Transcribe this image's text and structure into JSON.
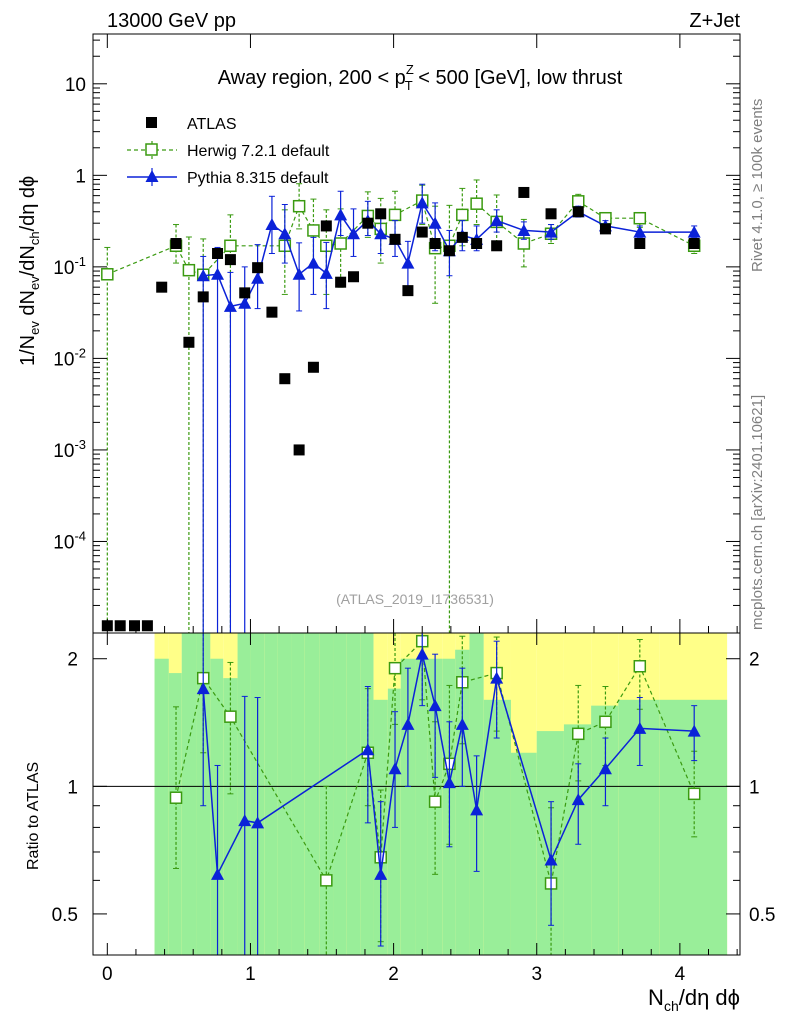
{
  "header": {
    "left": "13000 GeV pp",
    "right": "Z+Jet"
  },
  "side_texts": {
    "rivet": "Rivet 4.1.0, ≥ 100k events",
    "mcplots": "mcplots.cern.ch [arXiv:2401.10621]"
  },
  "watermark": "(ATLAS_2019_I1736531)",
  "ratio_ylabel": "Ratio to ATLAS",
  "colors": {
    "atlas": "#000000",
    "herwig": "#3a9a10",
    "pythia": "#0b22d8",
    "band_inner": "#99ee99",
    "band_outer": "#ffff88"
  },
  "chart_data": [
    {
      "type": "scatter",
      "title": "Away region, 200 < pTZ < 500 [GeV], low thrust",
      "title_parts": {
        "pre": "Away region, 200 < p",
        "sup": "Z",
        "sub": "T",
        "post": " < 500 [GeV], low thrust"
      },
      "xlabel": "Nch/dη dϕ",
      "xlabel_parts": {
        "a": "N",
        "a_sub": "ch",
        "b": "/dη dϕ"
      },
      "ylabel": "1/Nev dNev/dNch/dη dϕ",
      "ylabel_parts": {
        "a": "1/N",
        "a_sub": "ev",
        "b": " dN",
        "b_sub": "ev",
        "c": "/dN",
        "c_sub": "ch",
        "d": "/dη dϕ"
      },
      "yscale": "log",
      "xlim": [
        -0.1,
        4.42
      ],
      "ylim": [
        1e-05,
        35
      ],
      "xticks": [
        0,
        1,
        2,
        3,
        4
      ],
      "ytick_labels": [
        {
          "v": 10,
          "m": "10",
          "e": ""
        },
        {
          "v": 1,
          "m": "1",
          "e": ""
        },
        {
          "v": 0.1,
          "m": "10",
          "e": "-1"
        },
        {
          "v": 0.01,
          "m": "10",
          "e": "-2"
        },
        {
          "v": 0.001,
          "m": "10",
          "e": "-3"
        },
        {
          "v": 0.0001,
          "m": "10",
          "e": "-4"
        }
      ],
      "legend": [
        "ATLAS",
        "Herwig 7.2.1 default",
        "Pythia 8.315 default"
      ],
      "legend_position": "top-left",
      "series": [
        {
          "name": "ATLAS",
          "marker": "filled-square",
          "x": [
            0,
            0.09,
            0.19,
            0.28,
            0.38,
            0.48,
            0.57,
            0.67,
            0.77,
            0.86,
            0.96,
            1.05,
            1.15,
            1.24,
            1.34,
            1.44,
            1.53,
            1.63,
            1.72,
            1.82,
            1.91,
            2.01,
            2.1,
            2.2,
            2.29,
            2.39,
            2.48,
            2.58,
            2.72,
            2.91,
            3.1,
            3.29,
            3.48,
            3.72,
            4.1
          ],
          "y": [
            1.2e-05,
            1.2e-05,
            1.2e-05,
            1.2e-05,
            0.06,
            0.18,
            0.015,
            0.047,
            0.14,
            0.12,
            0.052,
            0.098,
            0.032,
            0.006,
            0.001,
            0.008,
            0.28,
            0.068,
            0.078,
            0.3,
            0.38,
            0.2,
            0.055,
            0.24,
            0.18,
            0.15,
            0.21,
            0.18,
            0.17,
            0.65,
            0.38,
            0.4,
            0.26,
            0.18,
            0.18
          ]
        },
        {
          "name": "Herwig 7.2.1 default",
          "marker": "open-square",
          "line": "dashed",
          "x": [
            0,
            0.48,
            0.57,
            0.67,
            0.86,
            1.24,
            1.34,
            1.44,
            1.53,
            1.63,
            1.82,
            1.91,
            2.01,
            2.2,
            2.29,
            2.39,
            2.48,
            2.58,
            2.72,
            2.91,
            3.1,
            3.29,
            3.48,
            3.72,
            4.1
          ],
          "y": [
            0.083,
            0.17,
            0.092,
            0.082,
            0.17,
            0.17,
            0.46,
            0.25,
            0.17,
            0.18,
            0.36,
            0.26,
            0.37,
            0.53,
            0.16,
            0.17,
            0.37,
            0.49,
            0.31,
            0.18,
            0.23,
            0.52,
            0.34,
            0.34,
            0.17
          ],
          "err_lo": [
            0.083,
            0.06,
            0.092,
            0.082,
            0.17,
            0.12,
            0.2,
            0.15,
            0.12,
            0.12,
            0.15,
            0.15,
            0.18,
            0.24,
            0.12,
            0.17,
            0.2,
            0.2,
            0.15,
            0.08,
            0.05,
            0.12,
            0.07,
            0.07,
            0.03
          ],
          "err_hi": [
            0.08,
            0.12,
            0.12,
            0.12,
            0.2,
            0.25,
            0.35,
            0.3,
            0.25,
            0.25,
            0.3,
            0.3,
            0.3,
            0.25,
            0.3,
            0.3,
            0.35,
            0.4,
            0.3,
            0.15,
            0.06,
            0.1,
            0.05,
            0.05,
            0.03
          ]
        },
        {
          "name": "Pythia 8.315 default",
          "marker": "filled-triangle",
          "line": "solid",
          "x": [
            0.67,
            0.77,
            0.86,
            0.96,
            1.05,
            1.15,
            1.24,
            1.34,
            1.44,
            1.53,
            1.63,
            1.72,
            1.82,
            1.91,
            2.01,
            2.1,
            2.2,
            2.29,
            2.39,
            2.48,
            2.58,
            2.72,
            2.91,
            3.1,
            3.29,
            3.48,
            3.72,
            4.1
          ],
          "y": [
            0.08,
            0.083,
            0.037,
            0.04,
            0.075,
            0.29,
            0.23,
            0.083,
            0.11,
            0.085,
            0.37,
            0.23,
            0.32,
            0.23,
            0.2,
            0.11,
            0.5,
            0.3,
            0.15,
            0.22,
            0.2,
            0.32,
            0.25,
            0.24,
            0.4,
            0.28,
            0.24,
            0.24
          ],
          "err_lo": [
            0.08,
            0.083,
            0.037,
            0.04,
            0.04,
            0.15,
            0.12,
            0.05,
            0.06,
            0.05,
            0.15,
            0.1,
            0.1,
            0.09,
            0.07,
            0.05,
            0.2,
            0.15,
            0.07,
            0.07,
            0.05,
            0.08,
            0.05,
            0.04,
            0.05,
            0.03,
            0.03,
            0.03
          ],
          "err_hi": [
            0.05,
            0.08,
            0.05,
            0.06,
            0.1,
            0.3,
            0.25,
            0.1,
            0.1,
            0.1,
            0.3,
            0.2,
            0.2,
            0.15,
            0.12,
            0.08,
            0.3,
            0.2,
            0.1,
            0.1,
            0.08,
            0.1,
            0.06,
            0.05,
            0.06,
            0.04,
            0.04,
            0.04
          ]
        }
      ]
    },
    {
      "type": "scatter",
      "title": "",
      "xlabel": "Nch/dη dϕ",
      "ylabel": "Ratio to ATLAS",
      "yscale": "log",
      "xlim": [
        -0.1,
        4.42
      ],
      "ylim": [
        0.4,
        2.3
      ],
      "yticks": [
        0.5,
        1,
        2
      ],
      "ytick_labels": [
        "0.5",
        "1",
        "2"
      ],
      "reference_line": 1,
      "bands": {
        "edges": [
          0.33,
          0.43,
          0.52,
          0.62,
          0.72,
          0.81,
          0.91,
          1.0,
          1.1,
          1.19,
          1.29,
          1.38,
          1.48,
          1.58,
          1.67,
          1.77,
          1.86,
          1.96,
          2.05,
          2.15,
          2.24,
          2.34,
          2.43,
          2.53,
          2.63,
          2.82,
          3.0,
          3.19,
          3.38,
          3.57,
          3.86,
          4.33
        ],
        "inner_lo": [
          0.4,
          0.4,
          0.4,
          0.4,
          0.4,
          0.4,
          0.4,
          0.4,
          0.4,
          0.4,
          0.4,
          0.4,
          0.4,
          0.4,
          0.4,
          0.4,
          0.4,
          0.4,
          0.4,
          0.4,
          0.4,
          0.4,
          0.4,
          0.4,
          0.4,
          0.4,
          0.4,
          0.4,
          0.4,
          0.4,
          0.4
        ],
        "inner_hi": [
          2.0,
          1.85,
          2.3,
          2.3,
          2.0,
          1.8,
          2.3,
          2.3,
          2.3,
          2.3,
          2.3,
          2.3,
          2.3,
          2.3,
          2.3,
          2.3,
          1.6,
          1.7,
          2.0,
          2.0,
          2.0,
          2.0,
          2.1,
          2.3,
          1.6,
          1.2,
          1.35,
          1.4,
          1.55,
          1.6,
          1.6
        ],
        "outer_lo": [
          0.4,
          0.4,
          0.4,
          0.4,
          0.4,
          0.4,
          0.4,
          0.4,
          0.4,
          0.4,
          0.4,
          0.4,
          0.4,
          0.4,
          0.4,
          0.4,
          0.4,
          0.4,
          0.4,
          0.4,
          0.4,
          0.4,
          0.4,
          0.4,
          0.4,
          0.4,
          0.4,
          0.4,
          0.4,
          0.4,
          0.4
        ],
        "outer_hi": [
          2.3,
          2.3,
          2.3,
          2.3,
          2.3,
          2.3,
          2.3,
          2.3,
          2.3,
          2.3,
          2.3,
          2.3,
          2.3,
          2.3,
          2.3,
          2.3,
          2.3,
          2.3,
          2.3,
          2.3,
          2.3,
          2.3,
          2.3,
          2.3,
          2.3,
          2.3,
          2.3,
          2.3,
          2.3,
          2.3,
          2.3
        ]
      },
      "series": [
        {
          "name": "Herwig 7.2.1 default",
          "marker": "open-square",
          "line": "dashed",
          "x": [
            0.48,
            0.67,
            0.86,
            1.53,
            1.82,
            1.91,
            2.01,
            2.2,
            2.29,
            2.39,
            2.48,
            2.72,
            3.1,
            3.29,
            3.48,
            3.72,
            4.1
          ],
          "y": [
            0.94,
            1.8,
            1.46,
            0.6,
            1.2,
            0.68,
            1.9,
            2.2,
            0.92,
            1.13,
            1.76,
            1.85,
            0.59,
            1.33,
            1.42,
            1.92,
            0.96
          ],
          "err_lo": [
            0.3,
            0.6,
            0.5,
            0.2,
            0.3,
            0.25,
            0.5,
            0.6,
            0.3,
            0.4,
            0.5,
            0.5,
            0.2,
            0.3,
            0.3,
            0.4,
            0.2
          ],
          "err_hi": [
            0.6,
            0.6,
            0.5,
            0.4,
            0.5,
            0.3,
            0.4,
            0.1,
            0.5,
            0.6,
            0.5,
            0.4,
            0.3,
            0.4,
            0.3,
            0.3,
            0.25
          ]
        },
        {
          "name": "Pythia 8.315 default",
          "marker": "filled-triangle",
          "line": "solid",
          "x": [
            0.67,
            0.77,
            0.96,
            1.05,
            1.82,
            1.91,
            2.01,
            2.1,
            2.2,
            2.29,
            2.39,
            2.48,
            2.58,
            2.72,
            3.1,
            3.29,
            3.48,
            3.72,
            4.1
          ],
          "y": [
            1.7,
            0.62,
            0.83,
            0.82,
            1.22,
            0.62,
            1.1,
            1.4,
            2.05,
            1.55,
            1.02,
            1.4,
            0.88,
            1.8,
            0.67,
            0.93,
            1.1,
            1.37,
            1.35
          ],
          "err_lo": [
            0.8,
            0.3,
            0.5,
            0.5,
            0.4,
            0.2,
            0.3,
            0.4,
            0.5,
            0.5,
            0.3,
            0.4,
            0.25,
            0.5,
            0.2,
            0.2,
            0.2,
            0.25,
            0.2
          ],
          "err_hi": [
            0.6,
            0.5,
            0.8,
            0.8,
            0.5,
            0.3,
            0.4,
            0.5,
            0.3,
            0.5,
            0.4,
            0.5,
            0.3,
            0.4,
            0.25,
            0.2,
            0.2,
            0.25,
            0.2
          ]
        }
      ]
    }
  ]
}
